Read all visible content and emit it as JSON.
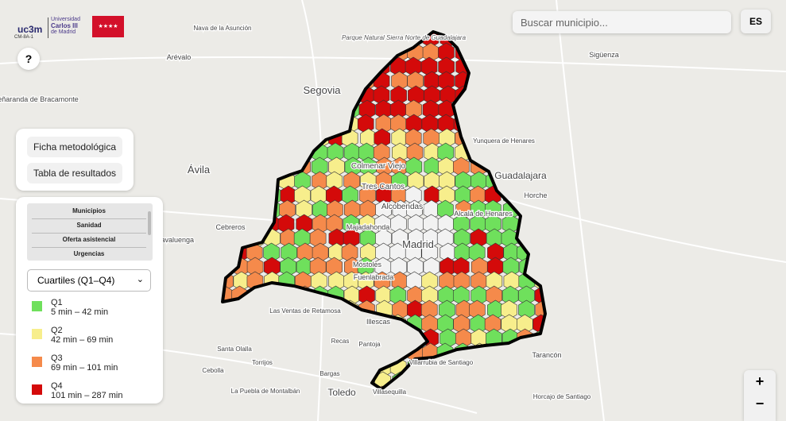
{
  "logos": {
    "uc3m": "uc3m",
    "university": [
      "Universidad",
      "Carlos III",
      "de Madrid"
    ],
    "code": "CM-8A-1",
    "stars": "★★★★"
  },
  "help_button": "?",
  "search": {
    "placeholder": "Buscar municipio..."
  },
  "language_button": "ES",
  "buttons": [
    "Ficha metodológica",
    "Tabla de resultados"
  ],
  "layers": [
    "Municipios",
    "Sanidad",
    "Oferta asistencial",
    "Urgencias"
  ],
  "classification": "Cuartiles (Q1–Q4)",
  "legend": [
    {
      "label": "Q1",
      "range": "5 min – 42 min",
      "color": "#6fe05c"
    },
    {
      "label": "Q2",
      "range": "42 min – 69 min",
      "color": "#f7ee8c"
    },
    {
      "label": "Q3",
      "range": "69 min – 101 min",
      "color": "#f58a4b"
    },
    {
      "label": "Q4",
      "range": "101 min – 287 min",
      "color": "#d40a0a"
    }
  ],
  "zoom": {
    "in": "+",
    "out": "−"
  },
  "map_labels": [
    "Segovia",
    "Ávila",
    "Guadalajara",
    "Toledo",
    "Madrid",
    "Alcobendas",
    "Tres Cantos",
    "Colmenar Viejo",
    "Majadahonda",
    "Móstoles",
    "Fuenlabrada",
    "Illescas",
    "Alcalá de Henares",
    "Navaluenga",
    "Cebreros",
    "Arévalo",
    "Peñaranda de Bracamonte",
    "Nava de la Asunción",
    "Sigüenza",
    "Yunquera de Henares",
    "Horche",
    "Tarancón",
    "Villarrubia de Santiago",
    "Horcajo de Santiago",
    "Las Ventas de Retamosa",
    "Santa Olalla",
    "Torrijos",
    "Recas",
    "Pantoja",
    "Bargas",
    "Villasequilla",
    "Cebolla",
    "La Puebla de Montalbán",
    "Parque Natural Sierra Norte de Guadalajara"
  ]
}
